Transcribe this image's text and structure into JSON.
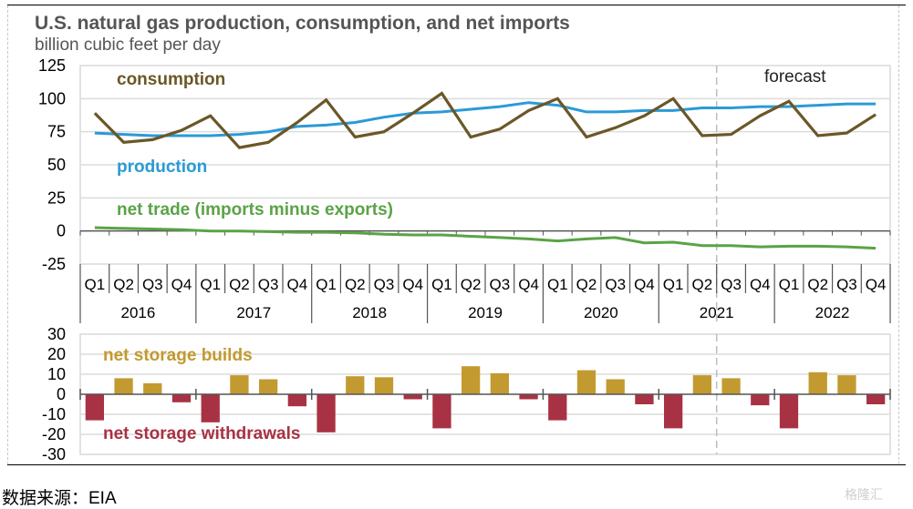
{
  "header": {
    "title": "U.S. natural gas production, consumption, and net imports",
    "subtitle": "billion cubic feet per day"
  },
  "footer": {
    "source": "数据来源：EIA",
    "watermark": "格隆汇"
  },
  "colors": {
    "consumption": "#6b5727",
    "production": "#2b9ad6",
    "net_trade": "#5aa346",
    "builds": "#c39a30",
    "withdrawals": "#a83243"
  },
  "chart_data": [
    {
      "type": "line",
      "title": "U.S. natural gas production, consumption, and net imports",
      "ylabel": "billion cubic feet per day",
      "ylim": [
        -25,
        125
      ],
      "yticks": [
        "125",
        "100",
        "75",
        "50",
        "25",
        "0",
        "-25"
      ],
      "ytick_values": [
        125,
        100,
        75,
        50,
        25,
        0,
        -25
      ],
      "grid": true,
      "annotation": "forecast",
      "forecast_starts_after": "2021 Q2",
      "quarters": [
        "Q1",
        "Q2",
        "Q3",
        "Q4",
        "Q1",
        "Q2",
        "Q3",
        "Q4",
        "Q1",
        "Q2",
        "Q3",
        "Q4",
        "Q1",
        "Q2",
        "Q3",
        "Q4",
        "Q1",
        "Q2",
        "Q3",
        "Q4",
        "Q1",
        "Q2",
        "Q3",
        "Q4",
        "Q1",
        "Q2",
        "Q3",
        "Q4"
      ],
      "years": [
        "2016",
        "2017",
        "2018",
        "2019",
        "2020",
        "2021",
        "2022"
      ],
      "series": [
        {
          "name": "consumption",
          "label": "consumption",
          "values": [
            89,
            67,
            69,
            76,
            87,
            63,
            67,
            82,
            99,
            71,
            75,
            89,
            104,
            71,
            77,
            91,
            100,
            71,
            78,
            87,
            100,
            72,
            73,
            87,
            98,
            72,
            74,
            88
          ]
        },
        {
          "name": "production",
          "label": "production",
          "values": [
            74,
            73,
            72,
            72,
            72,
            73,
            75,
            79,
            80,
            82,
            86,
            89,
            90,
            92,
            94,
            97,
            95,
            90,
            90,
            91,
            91,
            93,
            93,
            94,
            94,
            95,
            96,
            96
          ]
        },
        {
          "name": "net_trade",
          "label": "net trade (imports minus exports)",
          "values": [
            2.5,
            2,
            1.5,
            1,
            0,
            0,
            -0.5,
            -1,
            -1,
            -1.5,
            -2.5,
            -3,
            -3,
            -4,
            -5,
            -6,
            -7.5,
            -6,
            -5,
            -9,
            -8.5,
            -11,
            -11,
            -12,
            -11.5,
            -11.5,
            -12,
            -13
          ]
        }
      ]
    },
    {
      "type": "bar",
      "ylim": [
        -30,
        30
      ],
      "yticks": [
        "30",
        "20",
        "10",
        "0",
        "-10",
        "-20",
        "-30"
      ],
      "ytick_values": [
        30,
        20,
        10,
        0,
        -10,
        -20,
        -30
      ],
      "grid": true,
      "legend": [
        "net storage builds",
        "net storage withdrawals"
      ],
      "values": [
        -13,
        8,
        5.5,
        -4,
        -14,
        9.5,
        7.5,
        -6,
        -19,
        9,
        8.5,
        -2.5,
        -17,
        14,
        10.5,
        -2.5,
        -13,
        12,
        7.5,
        -5,
        -17,
        9.5,
        8,
        -5.5,
        -17,
        11,
        9.5,
        -5
      ]
    }
  ]
}
